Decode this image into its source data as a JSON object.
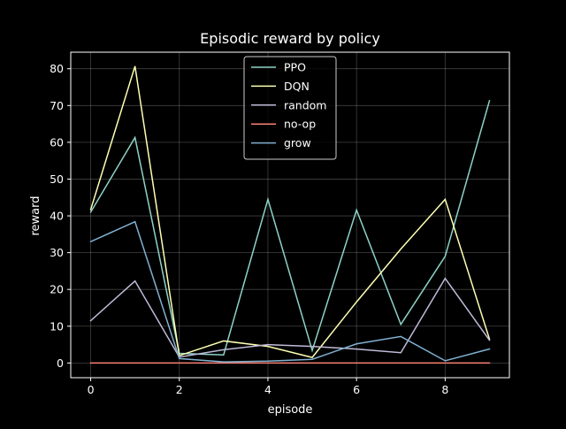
{
  "chart_data": {
    "type": "line",
    "title": "Episodic reward by policy",
    "xlabel": "episode",
    "ylabel": "reward",
    "x": [
      0,
      1,
      2,
      3,
      4,
      5,
      6,
      7,
      8,
      9
    ],
    "xlim": [
      -0.45,
      9.45
    ],
    "ylim": [
      -4,
      84.5
    ],
    "xticks": [
      0,
      2,
      4,
      6,
      8
    ],
    "yticks": [
      0,
      10,
      20,
      30,
      40,
      50,
      60,
      70,
      80
    ],
    "grid": true,
    "legend_position": "top-center",
    "background": "#000000",
    "series": [
      {
        "name": "PPO",
        "color": "#8dd3c7",
        "values": [
          41.0,
          61.3,
          2.6,
          2.2,
          44.5,
          3.4,
          41.6,
          10.5,
          29.0,
          71.3
        ]
      },
      {
        "name": "DQN",
        "color": "#feffb3",
        "values": [
          41.7,
          80.7,
          2.0,
          6.0,
          4.5,
          1.5,
          16.6,
          31.0,
          44.5,
          6.5
        ]
      },
      {
        "name": "random",
        "color": "#bfbbd9",
        "values": [
          11.5,
          22.3,
          1.6,
          3.6,
          5.0,
          4.5,
          3.8,
          2.8,
          23.0,
          6.2
        ]
      },
      {
        "name": "no-op",
        "color": "#fa8174",
        "values": [
          0,
          0,
          0,
          0,
          0,
          0,
          0,
          0,
          0,
          0
        ]
      },
      {
        "name": "grow",
        "color": "#81b1d2",
        "values": [
          33.0,
          38.4,
          1.2,
          0.3,
          0.5,
          1.0,
          5.2,
          7.2,
          0.6,
          3.8
        ]
      }
    ]
  }
}
